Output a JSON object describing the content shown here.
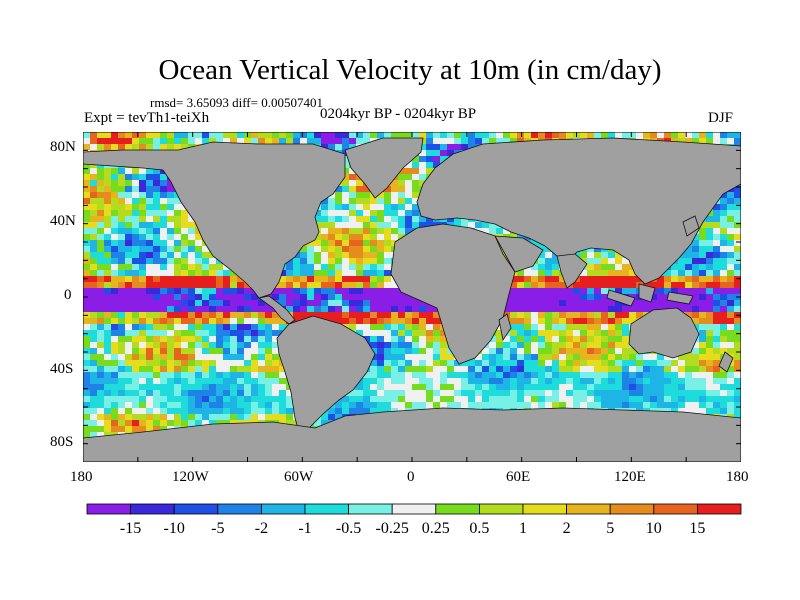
{
  "title": "Ocean Vertical Velocity at 10m (in cm/day)",
  "stats_text": "rmsd= 3.65093 diff= 0.00507401",
  "expt_text": "Expt = tevTh1-teiXh",
  "period_text": "0204kyr BP - 0204kyr BP",
  "season_text": "DJF",
  "lat_labels": [
    "80N",
    "40N",
    "0",
    "40S",
    "80S"
  ],
  "lon_labels": [
    "180",
    "120W",
    "60W",
    "0",
    "60E",
    "120E",
    "180"
  ],
  "colorbar": {
    "labels": [
      "-15",
      "-10",
      "-5",
      "-2",
      "-1",
      "-0.5",
      "-0.25",
      "0.25",
      "0.5",
      "1",
      "2",
      "5",
      "10",
      "15"
    ],
    "colors": [
      "#8a1ee6",
      "#3c28dc",
      "#1e50e6",
      "#1e82e6",
      "#1eb4e6",
      "#1edcdc",
      "#78f0e6",
      "#f0f0f0",
      "#78dc1e",
      "#b4dc1e",
      "#e6dc1e",
      "#e6b41e",
      "#e68c1e",
      "#e6641e",
      "#e61e1e"
    ]
  },
  "colors": {
    "land": "#a0a0a0",
    "frame": "#000000"
  }
}
